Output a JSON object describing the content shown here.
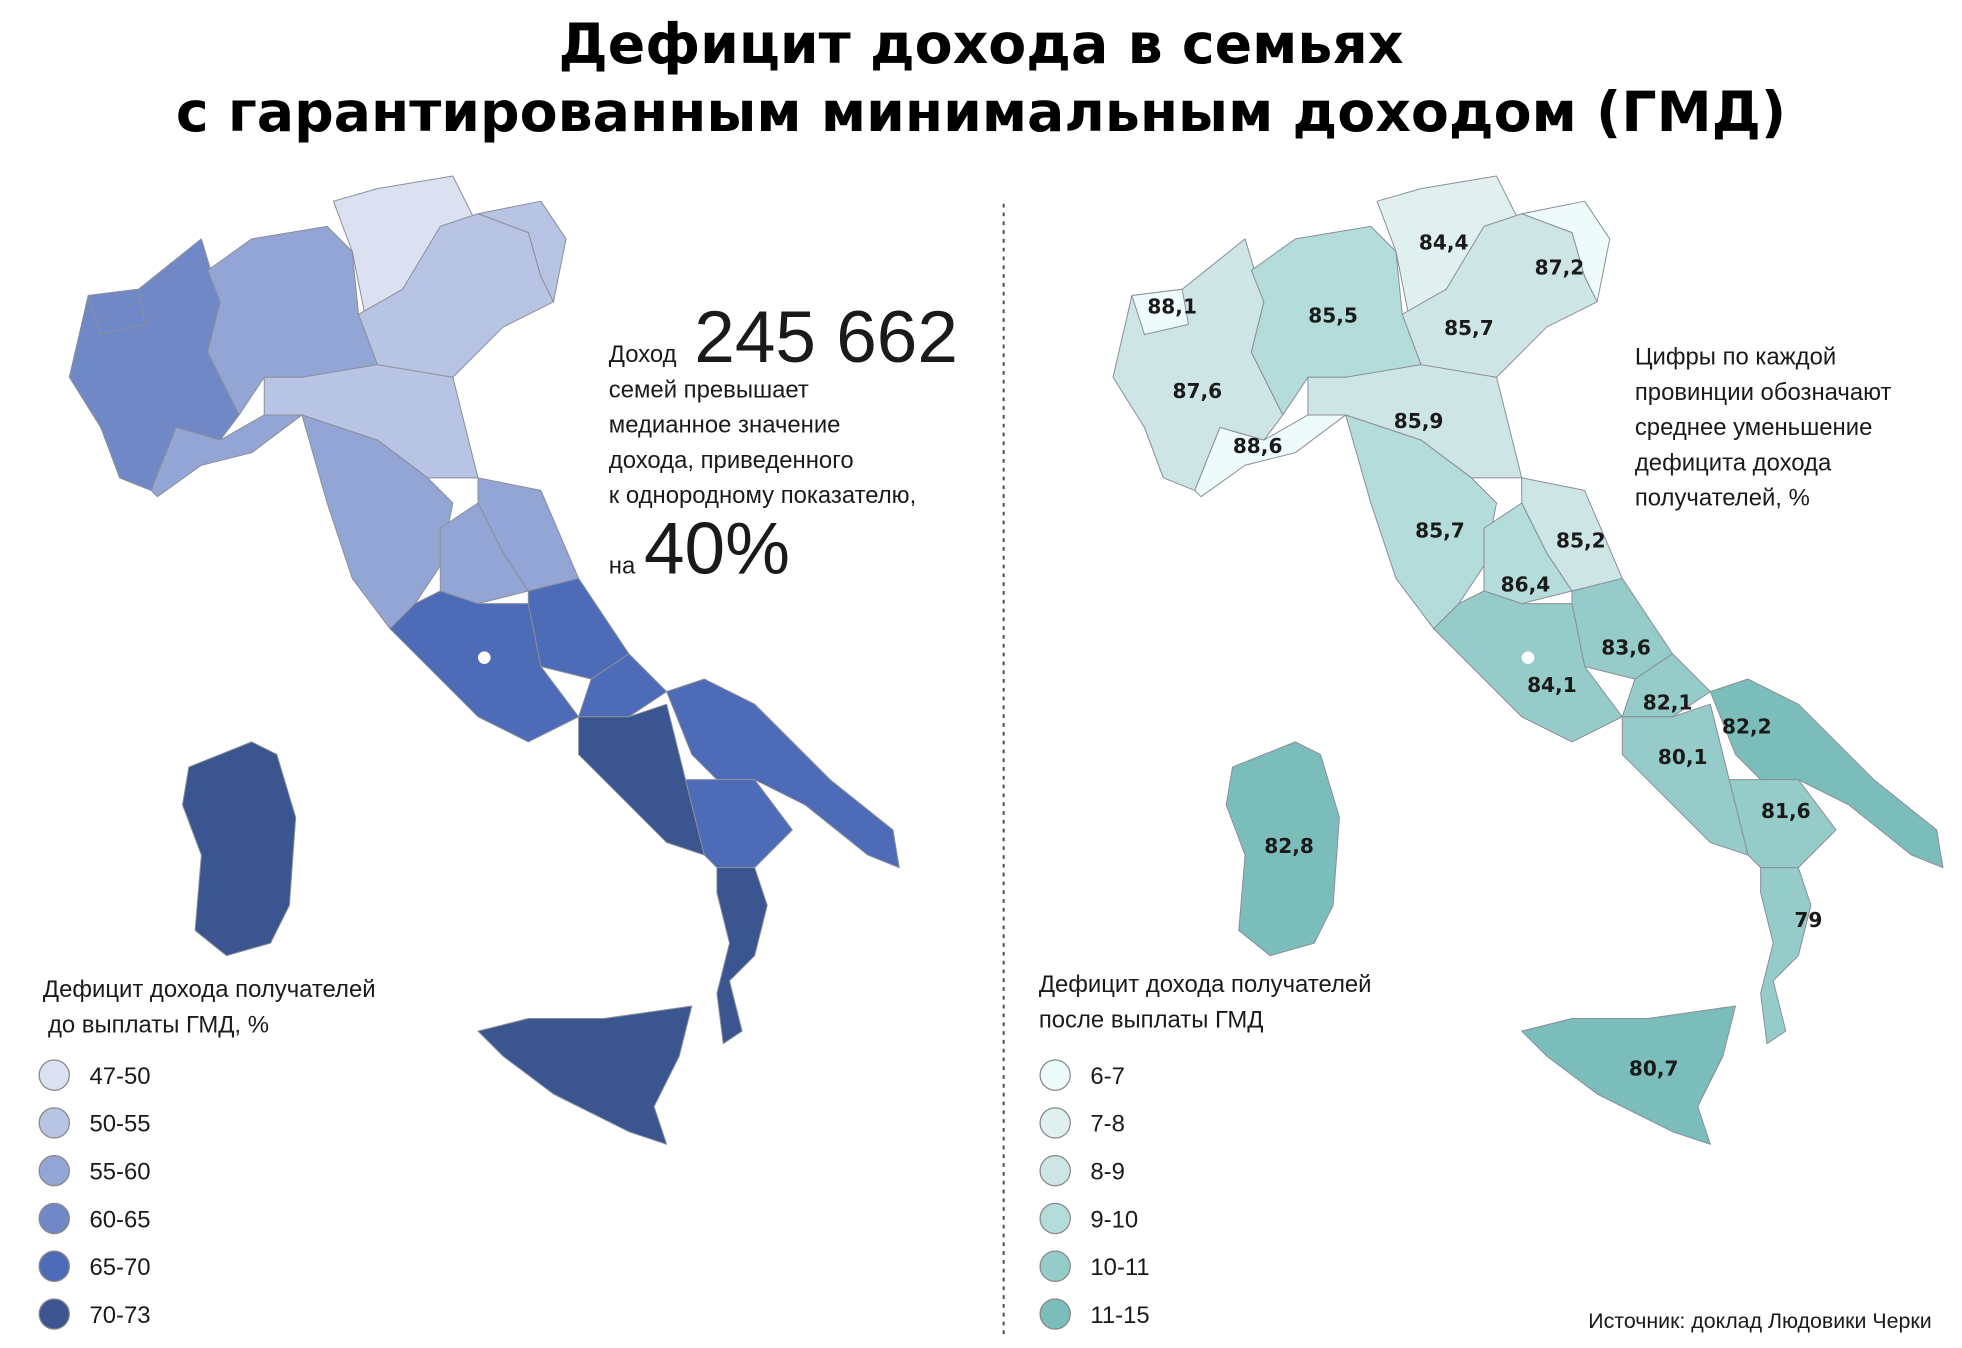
{
  "title": [
    "Дефицит дохода в семьях",
    "с гарантированным минимальным доходом (ГМД)"
  ],
  "annotation": {
    "prefix": "Доход",
    "number": "245 662",
    "lines": [
      "семей превышает",
      "медианное значение",
      "дохода, приведенного",
      "к однородному показателю,"
    ],
    "percent_prefix": "на",
    "percent": "40%"
  },
  "left_legend": {
    "title": [
      "Дефицит дохода получателей",
      "до выплаты ГМД, %"
    ],
    "items": [
      {
        "label": "47-50",
        "color": "#dbe1f1"
      },
      {
        "label": "50-55",
        "color": "#b8c4e4"
      },
      {
        "label": "55-60",
        "color": "#93a5d4"
      },
      {
        "label": "60-65",
        "color": "#7089c6"
      },
      {
        "label": "65-70",
        "color": "#4e6bb8"
      },
      {
        "label": "70-73",
        "color": "#3a5590"
      }
    ]
  },
  "right_legend": {
    "title": [
      "Дефицит дохода получателей",
      "после выплаты ГМД"
    ],
    "items": [
      {
        "label": "6-7",
        "color": "#eefbfb"
      },
      {
        "label": "7-8",
        "color": "#e0f0ef"
      },
      {
        "label": "8-9",
        "color": "#cde6e5"
      },
      {
        "label": "9-10",
        "color": "#b3dcda"
      },
      {
        "label": "10-11",
        "color": "#95cbc8"
      },
      {
        "label": "11-15",
        "color": "#7bbdba"
      }
    ]
  },
  "right_note": [
    "Цифры по каждой",
    "провинции обозначают",
    "среднее уменьшение",
    "дефицита дохода",
    "получателей, %"
  ],
  "right_map": {
    "labels": [
      "88,1",
      "87,6",
      "88,6",
      "85,5",
      "84,4",
      "87,2",
      "85,7",
      "85,9",
      "85,7",
      "85,2",
      "86,4",
      "83,6",
      "84,1",
      "82,1",
      "82,2",
      "80,1",
      "81,6",
      "79",
      "80,7",
      "82,8"
    ]
  },
  "source": "Источник: доклад Людовики Черки"
}
